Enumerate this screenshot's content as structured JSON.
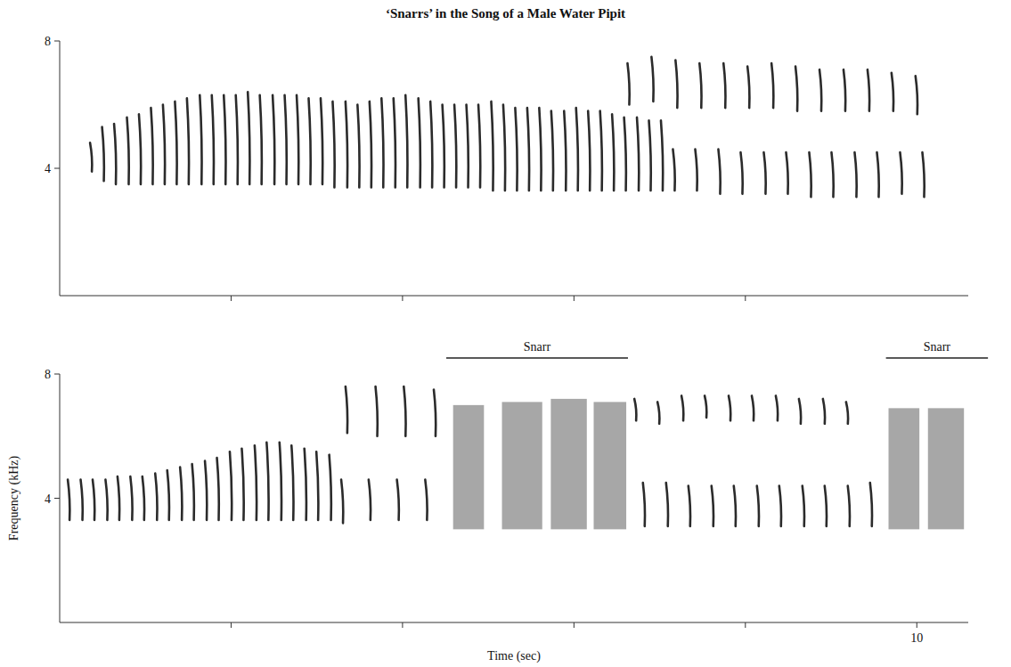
{
  "chart_data": [
    {
      "type": "spectrogram",
      "title": "‘Snarrs’ in the Song of a Male Water Pipit",
      "xlim": [
        0,
        10.6
      ],
      "ylim": [
        0,
        8
      ],
      "yticks": [
        4,
        8
      ],
      "xticks": [
        {
          "value": 2,
          "label": null
        },
        {
          "value": 4,
          "label": null
        },
        {
          "value": 6,
          "label": null
        },
        {
          "value": 8,
          "label": null
        }
      ],
      "tick_labels": "y",
      "color": "#2b2b2b",
      "series": [
        {
          "type": "note",
          "x": [
            0.37,
            0.51,
            0.65,
            0.8,
            0.94,
            1.08,
            1.22,
            1.36,
            1.5,
            1.65,
            1.79,
            1.93,
            2.07,
            2.21,
            2.35,
            2.5,
            2.64,
            2.78,
            2.92,
            3.06,
            3.2,
            3.35,
            3.49,
            3.63,
            3.77,
            3.91,
            4.05,
            4.2,
            4.34,
            4.48,
            4.62,
            4.76,
            4.9,
            5.05,
            5.19,
            5.33,
            5.47,
            5.61,
            5.75,
            5.9,
            6.04,
            6.18,
            6.32,
            6.46,
            6.6,
            6.75,
            6.89,
            7.03
          ],
          "values": [
            4.8,
            5.3,
            5.4,
            5.6,
            5.7,
            5.9,
            6.0,
            6.1,
            6.2,
            6.3,
            6.3,
            6.3,
            6.3,
            6.4,
            6.3,
            6.3,
            6.3,
            6.3,
            6.2,
            6.2,
            6.1,
            6.1,
            6.0,
            6.1,
            6.2,
            6.2,
            6.3,
            6.2,
            6.1,
            6.0,
            6.0,
            6.0,
            6.0,
            6.1,
            6.0,
            5.9,
            5.9,
            5.9,
            5.8,
            5.8,
            5.9,
            5.8,
            5.8,
            5.7,
            5.6,
            5.6,
            5.5,
            5.5
          ],
          "low": [
            3.9,
            3.6,
            3.5,
            3.5,
            3.5,
            3.5,
            3.5,
            3.5,
            3.5,
            3.5,
            3.5,
            3.5,
            3.5,
            3.5,
            3.5,
            3.5,
            3.5,
            3.5,
            3.5,
            3.5,
            3.4,
            3.4,
            3.4,
            3.4,
            3.4,
            3.4,
            3.4,
            3.4,
            3.4,
            3.4,
            3.4,
            3.4,
            3.4,
            3.3,
            3.3,
            3.3,
            3.3,
            3.3,
            3.3,
            3.3,
            3.3,
            3.3,
            3.3,
            3.3,
            3.3,
            3.3,
            3.3,
            3.3
          ]
        },
        {
          "type": "note",
          "x": [
            6.64,
            6.92,
            7.2,
            7.48,
            7.76,
            8.04,
            8.32,
            8.6,
            8.88,
            9.16,
            9.44,
            9.72,
            10.0
          ],
          "values": [
            7.3,
            7.5,
            7.4,
            7.3,
            7.3,
            7.2,
            7.3,
            7.2,
            7.1,
            7.1,
            7.1,
            7.0,
            6.9
          ],
          "low": [
            6.0,
            6.1,
            5.9,
            5.9,
            5.9,
            5.9,
            5.9,
            5.8,
            5.8,
            5.8,
            5.8,
            5.8,
            5.7
          ]
        },
        {
          "type": "note",
          "x": [
            7.17,
            7.43,
            7.7,
            7.96,
            8.23,
            8.49,
            8.76,
            9.02,
            9.29,
            9.55,
            9.82,
            10.08
          ],
          "values": [
            4.6,
            4.6,
            4.6,
            4.5,
            4.5,
            4.5,
            4.5,
            4.5,
            4.5,
            4.5,
            4.5,
            4.5
          ],
          "low": [
            3.3,
            3.3,
            3.2,
            3.2,
            3.2,
            3.2,
            3.1,
            3.1,
            3.1,
            3.1,
            3.2,
            3.1
          ]
        }
      ]
    },
    {
      "type": "spectrogram",
      "x_label": "Time (sec)",
      "y_label": "Frequency (kHz)",
      "xlim": [
        0,
        10.6
      ],
      "ylim": [
        0,
        8
      ],
      "yticks": [
        4,
        8
      ],
      "xticks": [
        {
          "value": 2,
          "label": null
        },
        {
          "value": 4,
          "label": null
        },
        {
          "value": 6,
          "label": null
        },
        {
          "value": 8,
          "label": null
        },
        10
      ],
      "color": "#2b2b2b",
      "series": [
        {
          "type": "note",
          "x": [
            0.11,
            0.26,
            0.4,
            0.55,
            0.69,
            0.84,
            0.98,
            1.13,
            1.27,
            1.42,
            1.56,
            1.71,
            1.85,
            2.0,
            2.14,
            2.29,
            2.43,
            2.58,
            2.72,
            2.87,
            3.01,
            3.16
          ],
          "values": [
            4.6,
            4.6,
            4.6,
            4.6,
            4.7,
            4.7,
            4.7,
            4.8,
            4.9,
            5.0,
            5.1,
            5.2,
            5.3,
            5.5,
            5.6,
            5.7,
            5.8,
            5.8,
            5.7,
            5.6,
            5.5,
            5.4
          ],
          "low": [
            3.3,
            3.3,
            3.3,
            3.3,
            3.3,
            3.3,
            3.3,
            3.3,
            3.3,
            3.3,
            3.3,
            3.3,
            3.3,
            3.3,
            3.3,
            3.3,
            3.3,
            3.3,
            3.3,
            3.3,
            3.3,
            3.3
          ]
        },
        {
          "type": "note",
          "x": [
            3.35,
            3.7,
            4.03,
            4.38
          ],
          "values": [
            7.6,
            7.6,
            7.6,
            7.5
          ],
          "low": [
            6.1,
            6.0,
            6.0,
            6.0
          ]
        },
        {
          "type": "note",
          "x": [
            3.3,
            3.62,
            3.95,
            4.28
          ],
          "values": [
            4.6,
            4.6,
            4.6,
            4.6
          ],
          "low": [
            3.2,
            3.3,
            3.3,
            3.3
          ]
        },
        {
          "type": "block",
          "color": "#8a8a8a",
          "x": [
            4.59,
            5.16,
            5.73,
            6.23,
            9.67,
            10.13
          ],
          "x_end": [
            4.95,
            5.63,
            6.15,
            6.61,
            10.03,
            10.55
          ],
          "values": [
            7.0,
            7.1,
            7.2,
            7.1,
            6.9,
            6.9
          ],
          "low": [
            3.0,
            3.0,
            3.0,
            3.0,
            3.0,
            3.0
          ]
        },
        {
          "type": "note",
          "x": [
            6.72,
            6.99,
            7.27,
            7.54,
            7.82,
            8.09,
            8.37,
            8.64,
            8.92,
            9.19
          ],
          "values": [
            7.2,
            7.1,
            7.3,
            7.3,
            7.3,
            7.3,
            7.3,
            7.2,
            7.2,
            7.1
          ],
          "low": [
            6.5,
            6.4,
            6.5,
            6.6,
            6.5,
            6.5,
            6.5,
            6.4,
            6.4,
            6.4
          ]
        },
        {
          "type": "note",
          "x": [
            6.82,
            7.09,
            7.35,
            7.62,
            7.88,
            8.15,
            8.41,
            8.68,
            8.94,
            9.21,
            9.47
          ],
          "values": [
            4.5,
            4.5,
            4.4,
            4.4,
            4.4,
            4.4,
            4.4,
            4.4,
            4.4,
            4.4,
            4.5
          ],
          "low": [
            3.1,
            3.1,
            3.1,
            3.1,
            3.1,
            3.1,
            3.1,
            3.1,
            3.1,
            3.1,
            3.1
          ]
        }
      ],
      "annotations": [
        {
          "text": "Snarr",
          "x": 4.51,
          "x_end": 6.63
        },
        {
          "text": "Snarr",
          "x": 9.64,
          "x_end": 10.83
        }
      ]
    }
  ]
}
